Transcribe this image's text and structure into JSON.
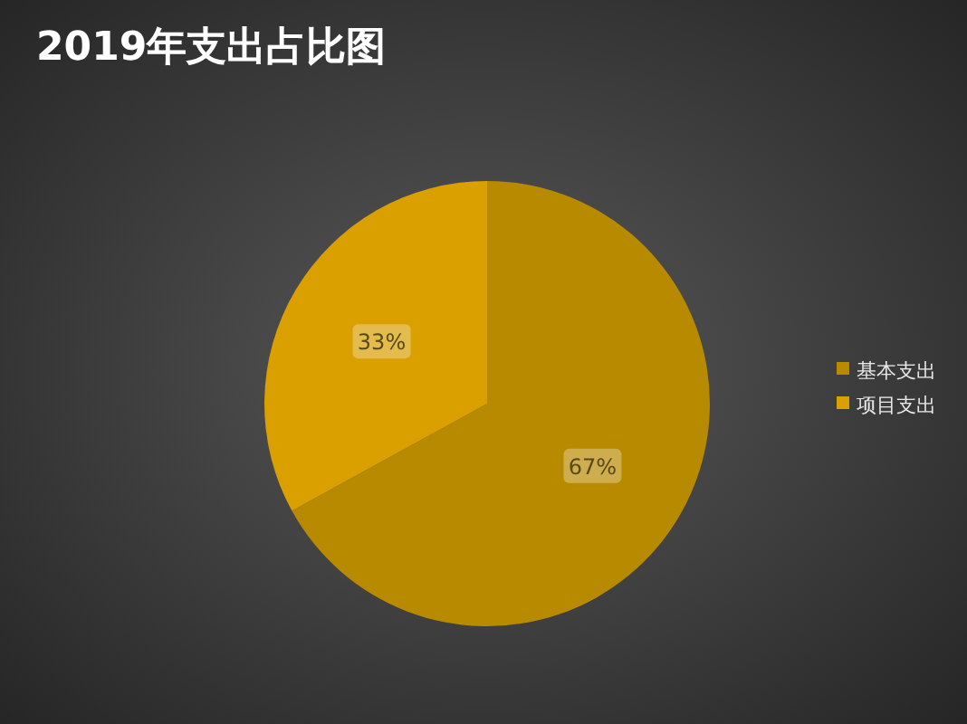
{
  "chart_data": {
    "type": "pie",
    "title": "2019年支出占比图",
    "categories": [
      "基本支出",
      "项目支出"
    ],
    "values": [
      67,
      33
    ],
    "value_labels": [
      "67%",
      "33%"
    ],
    "colors": [
      "#b88a00",
      "#d9a000"
    ],
    "legend": "right"
  }
}
